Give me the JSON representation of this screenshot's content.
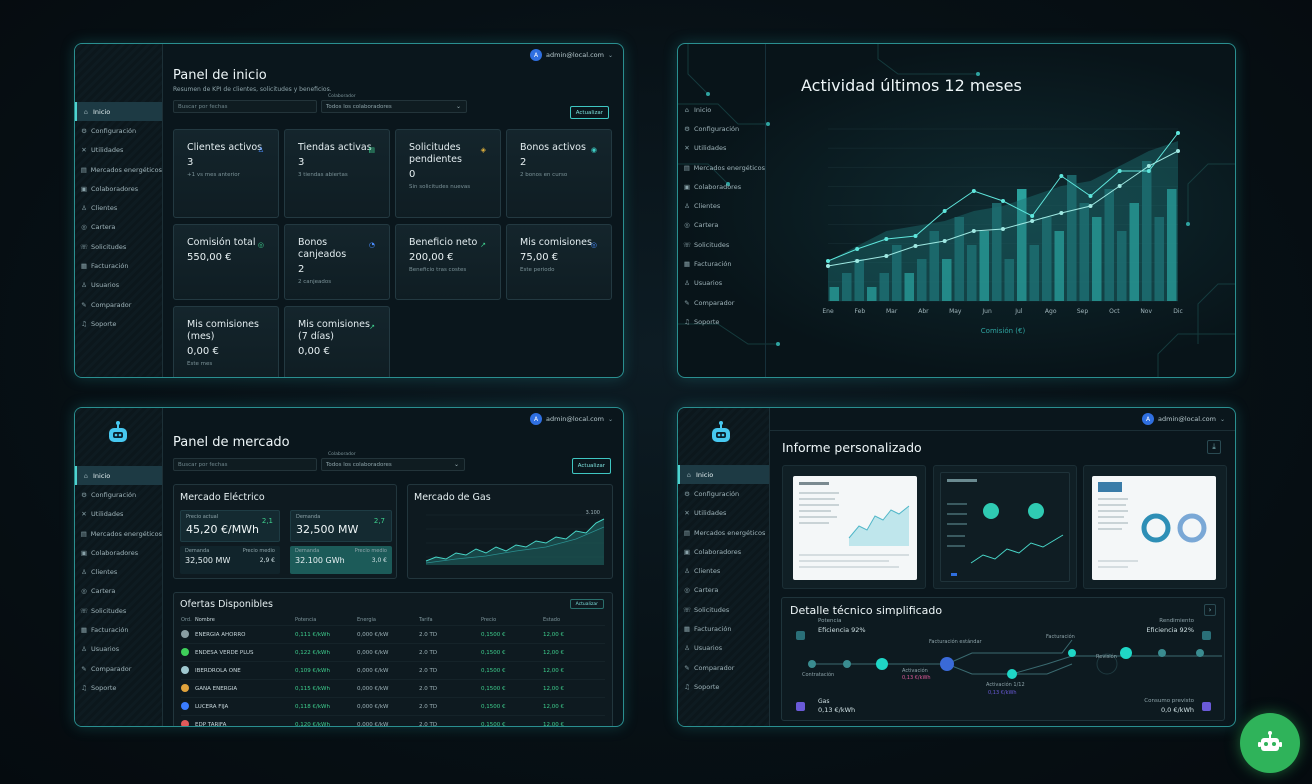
{
  "user": {
    "email": "admin@local.com",
    "initial": "A"
  },
  "sidebar_full": [
    {
      "icon": "⌂",
      "label": "Inicio"
    },
    {
      "icon": "⚙",
      "label": "Configuración"
    },
    {
      "icon": "✕",
      "label": "Utilidades"
    },
    {
      "icon": "▤",
      "label": "Mercados energéticos"
    },
    {
      "icon": "▣",
      "label": "Colaboradores"
    },
    {
      "icon": "♙",
      "label": "Clientes"
    },
    {
      "icon": "◎",
      "label": "Cartera"
    },
    {
      "icon": "☏",
      "label": "Solicitudes"
    },
    {
      "icon": "▦",
      "label": "Facturación"
    },
    {
      "icon": "♙",
      "label": "Usuarios"
    },
    {
      "icon": "✎",
      "label": "Comparador"
    },
    {
      "icon": "♫",
      "label": "Soporte"
    }
  ],
  "dashboard": {
    "title": "Panel de inicio",
    "subtitle": "Resumen de KPI de clientes, solicitudes y beneficios.",
    "search_placeholder": "Buscar por fechas",
    "select_label": "Colaborador",
    "select_value": "Todos los colaboradores",
    "action_label": "Actualizar",
    "cards": [
      {
        "title": "Clientes activos",
        "value": "3",
        "note": "+1 vs mes anterior",
        "icon": "♙",
        "color": "#4a8cff"
      },
      {
        "title": "Tiendas activas",
        "value": "3",
        "note": "3 tiendas abiertas",
        "icon": "▤",
        "color": "#3ecf8e"
      },
      {
        "title": "Solicitudes pendientes",
        "value": "0",
        "note": "Sin solicitudes nuevas",
        "icon": "◈",
        "color": "#e0b13c"
      },
      {
        "title": "Bonos activos",
        "value": "2",
        "note": "2 bonos en curso",
        "icon": "◉",
        "color": "#3ecfc6"
      },
      {
        "title": "Comisión total",
        "value": "550,00 €",
        "note": "",
        "icon": "◎",
        "color": "#3ecf8e"
      },
      {
        "title": "Bonos canjeados",
        "value": "2",
        "note": "2 canjeados",
        "icon": "◔",
        "color": "#4a8cff"
      },
      {
        "title": "Beneficio neto",
        "value": "200,00 €",
        "note": "Beneficio tras costes",
        "icon": "↗",
        "color": "#3ecf8e"
      },
      {
        "title": "Mis comisiones",
        "value": "75,00 €",
        "note": "Este periodo",
        "icon": "◎",
        "color": "#4a8cff"
      },
      {
        "title": "Mis comisiones (mes)",
        "value": "0,00 €",
        "note": "Este mes",
        "icon": "",
        "color": "#3ecf8e"
      },
      {
        "title": "Mis comisiones (7 días)",
        "value": "0,00 €",
        "note": "",
        "icon": "↗",
        "color": "#3ecf8e"
      }
    ]
  },
  "activity": {
    "title": "Actividad últimos 12 meses",
    "xlabel": "Comisión (€)",
    "ylabel": "Comisión (€)"
  },
  "market": {
    "title": "Panel de mercado",
    "search_placeholder": "Buscar por fechas",
    "select_label": "Colaborador",
    "select_value": "Todos los colaboradores",
    "action_label": "Actualizar",
    "electric": {
      "title": "Mercado Eléctrico",
      "price_label": "Precio actual",
      "price_value": "45,20 €/MWh",
      "price_change": "2,1",
      "demand_label": "Demanda",
      "demand_value": "32,500 MW",
      "demand_change": "2,7",
      "sub1_label": "Demanda",
      "sub1_value": "32,500 MW",
      "sub1_r1": "Precio medio",
      "sub1_r2": "2,9 €",
      "sub2_label": "Demanda",
      "sub2_value": "32.100 GWh",
      "sub2_r1": "Precio medio",
      "sub2_r2": "3,0 €"
    },
    "gas": {
      "title": "Mercado de Gas",
      "peak": "3.100"
    },
    "offers": {
      "title": "Ofertas Disponibles",
      "action": "Actualizar",
      "columns": [
        "Ord.",
        "Nombre",
        "Potencia",
        "Energía",
        "Tarifa",
        "Precio",
        "Estado"
      ],
      "rows": [
        {
          "name": "ENERGIA AHORRO",
          "c2": "0,111 €/kWh",
          "c3": "0,000 €/kW",
          "c4": "2.0 TD",
          "c5": "0,1500 €",
          "c6": "12,00 €",
          "dot": "#8a9ea3"
        },
        {
          "name": "ENDESA VERDE PLUS",
          "c2": "0,122 €/kWh",
          "c3": "0,000 €/kW",
          "c4": "2.0 TD",
          "c5": "0,1500 €",
          "c6": "12,00 €",
          "dot": "#3ecf5a"
        },
        {
          "name": "IBERDROLA ONE",
          "c2": "0,109 €/kWh",
          "c3": "0,000 €/kW",
          "c4": "2.0 TD",
          "c5": "0,1500 €",
          "c6": "12,00 €",
          "dot": "#9fc8d0"
        },
        {
          "name": "GANA ENERGIA",
          "c2": "0,115 €/kWh",
          "c3": "0,000 €/kW",
          "c4": "2.0 TD",
          "c5": "0,1500 €",
          "c6": "12,00 €",
          "dot": "#e0a23c"
        },
        {
          "name": "LUCERA FIJA",
          "c2": "0,118 €/kWh",
          "c3": "0,000 €/kW",
          "c4": "2.0 TD",
          "c5": "0,1500 €",
          "c6": "12,00 €",
          "dot": "#3a7cff"
        },
        {
          "name": "EDP TARIFA",
          "c2": "0,120 €/kWh",
          "c3": "0,000 €/kW",
          "c4": "2.0 TD",
          "c5": "0,1500 €",
          "c6": "12,00 €",
          "dot": "#e05a5a"
        }
      ]
    }
  },
  "report": {
    "title": "Informe personalizado",
    "detail_title": "Detalle técnico simplificado",
    "timeline_left_top_label": "Potencia",
    "timeline_left_top_value": "Eficiencia 92%",
    "timeline_right_top_label": "Rendimiento",
    "timeline_right_top_value": "Eficiencia 92%",
    "timeline_left_bottom_label": "Gas",
    "timeline_left_bottom_value": "0,13 €/kWh",
    "timeline_right_bottom_label": "Consumo previsto",
    "timeline_right_bottom_value": "0,0 €/kWh",
    "tl_labels": [
      "Contratación",
      "Activación",
      "Facturación estándar",
      "Facturación",
      "Seguimiento tarifa",
      "Revisión"
    ],
    "tl_sub1": "Activación 1/12",
    "tl_sub2": "0,13 €/kWh"
  }
}
